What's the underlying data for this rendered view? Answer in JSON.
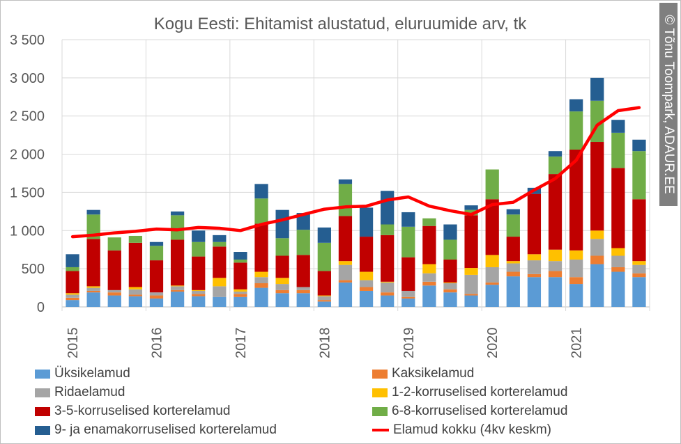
{
  "credit": "© Tõnu Toompark, ADAUR.EE",
  "chart_data": {
    "type": "bar",
    "stacked": true,
    "title": "Kogu Eesti: Ehitamist alustatud, eluruumide arv, tk",
    "xlabel": "",
    "ylabel": "",
    "ylim": [
      0,
      3500
    ],
    "yticks": [
      0,
      500,
      1000,
      1500,
      2000,
      2500,
      3000,
      3500
    ],
    "ytick_labels": [
      "0",
      "500",
      "1 000",
      "1 500",
      "2 000",
      "2 500",
      "3 000",
      "3 500"
    ],
    "year_labels": [
      "2015",
      "2016",
      "2017",
      "2018",
      "2019",
      "2020",
      "2021"
    ],
    "categories": [
      "2015 Q1",
      "2015 Q2",
      "2015 Q3",
      "2015 Q4",
      "2016 Q1",
      "2016 Q2",
      "2016 Q3",
      "2016 Q4",
      "2017 Q1",
      "2017 Q2",
      "2017 Q3",
      "2017 Q4",
      "2018 Q1",
      "2018 Q2",
      "2018 Q3",
      "2018 Q4",
      "2019 Q1",
      "2019 Q2",
      "2019 Q3",
      "2019 Q4",
      "2020 Q1",
      "2020 Q2",
      "2020 Q3",
      "2020 Q4",
      "2021 Q1",
      "2021 Q2",
      "2021 Q3",
      "2021 Q4"
    ],
    "grid": true,
    "legend_position": "bottom",
    "series": [
      {
        "name": "Üksikelamud",
        "color": "#5b9bd5",
        "values": [
          90,
          190,
          150,
          140,
          110,
          200,
          140,
          130,
          130,
          250,
          180,
          180,
          70,
          320,
          210,
          150,
          110,
          280,
          190,
          150,
          290,
          400,
          390,
          390,
          300,
          560,
          460,
          390
        ]
      },
      {
        "name": "Kaksikelamud",
        "color": "#ed7d31",
        "values": [
          30,
          20,
          40,
          20,
          40,
          20,
          30,
          0,
          40,
          60,
          40,
          40,
          20,
          30,
          50,
          40,
          20,
          50,
          40,
          20,
          30,
          60,
          40,
          80,
          90,
          110,
          60,
          50
        ]
      },
      {
        "name": "Ridaelamud",
        "color": "#a5a5a5",
        "values": [
          40,
          40,
          30,
          70,
          40,
          50,
          40,
          140,
          30,
          80,
          80,
          40,
          50,
          200,
          90,
          130,
          80,
          110,
          80,
          250,
          200,
          110,
          180,
          130,
          230,
          220,
          150,
          110
        ]
      },
      {
        "name": "1-2-korruselised korterelamud",
        "color": "#ffc000",
        "values": [
          20,
          20,
          0,
          30,
          0,
          10,
          10,
          110,
          30,
          70,
          80,
          0,
          10,
          50,
          110,
          10,
          0,
          120,
          10,
          90,
          160,
          30,
          80,
          150,
          120,
          110,
          100,
          50
        ]
      },
      {
        "name": "3-5-korruselised korterelamud",
        "color": "#c00000",
        "values": [
          290,
          620,
          520,
          580,
          420,
          600,
          440,
          410,
          350,
          630,
          290,
          420,
          320,
          590,
          460,
          610,
          440,
          500,
          300,
          690,
          730,
          320,
          790,
          990,
          1320,
          1160,
          1050,
          810
        ]
      },
      {
        "name": "6-8-korruselised korterelamud",
        "color": "#70ad47",
        "values": [
          50,
          320,
          170,
          90,
          190,
          320,
          190,
          60,
          40,
          330,
          230,
          330,
          370,
          420,
          0,
          140,
          400,
          100,
          260,
          70,
          390,
          290,
          0,
          230,
          500,
          540,
          460,
          630
        ]
      },
      {
        "name": "9- ja enamakorruselised korterelamud",
        "color": "#255e91",
        "values": [
          170,
          60,
          0,
          0,
          50,
          50,
          150,
          90,
          100,
          190,
          370,
          220,
          200,
          60,
          380,
          440,
          190,
          0,
          200,
          60,
          0,
          70,
          80,
          70,
          160,
          300,
          170,
          150
        ]
      }
    ],
    "line_series": {
      "name": "Elamud kokku (4kv keskm)",
      "color": "#ff0000",
      "values": [
        920,
        940,
        970,
        990,
        1020,
        1010,
        1040,
        1030,
        1000,
        1080,
        1140,
        1210,
        1280,
        1310,
        1320,
        1400,
        1440,
        1320,
        1260,
        1210,
        1340,
        1370,
        1530,
        1680,
        1920,
        2380,
        2570,
        2610
      ]
    }
  }
}
